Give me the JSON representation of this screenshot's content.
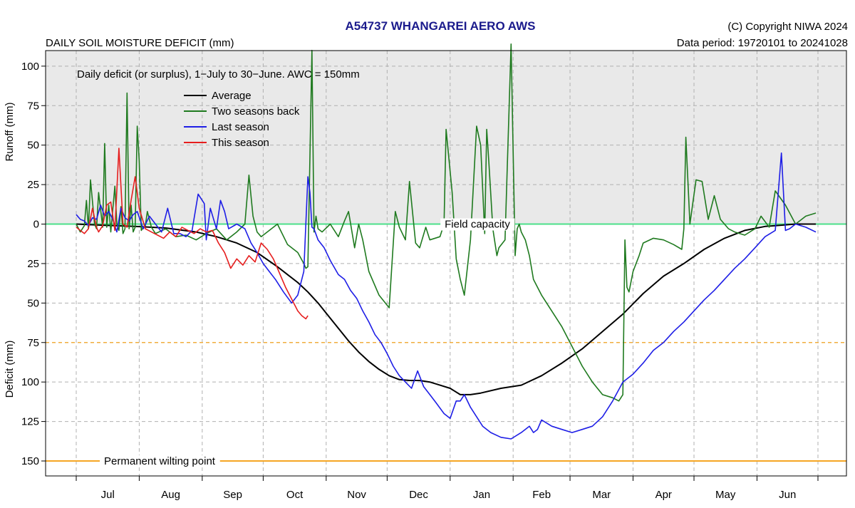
{
  "header": {
    "title": "A54737  WHANGAREI AERO AWS",
    "subtitle": "DAILY SOIL MOISTURE DEFICIT (mm)",
    "copyright": "(C) Copyright NIWA  2024",
    "data_period": "Data period:  19720101  to  20241028"
  },
  "chart_data": {
    "type": "line",
    "title": "A54737  WHANGAREI AERO AWS",
    "subtitle": "DAILY SOIL MOISTURE DEFICIT (mm)",
    "description": "Daily deficit (or surplus), 1−July to 30−June.  AWC = 150mm",
    "ylabel_top": "Runoff (mm)",
    "ylabel_bottom": "Deficit (mm)",
    "xlabel": "",
    "x_unit": "day of season (1 = 1 July)",
    "xlim": [
      1,
      365
    ],
    "ylim": [
      -110,
      160
    ],
    "y_axis_note": "positive values = deficit (plotted downward), negative values = runoff/surplus (plotted upward)",
    "categories": [
      "Jul",
      "Aug",
      "Sep",
      "Oct",
      "Nov",
      "Dec",
      "Jan",
      "Feb",
      "Mar",
      "Apr",
      "May",
      "Jun"
    ],
    "month_start_days": [
      1,
      32,
      63,
      93,
      124,
      154,
      185,
      216,
      244,
      275,
      305,
      336,
      366
    ],
    "y_ticks": [
      {
        "value": -100,
        "label": "100"
      },
      {
        "value": -75,
        "label": "75"
      },
      {
        "value": -50,
        "label": "50"
      },
      {
        "value": -25,
        "label": "25"
      },
      {
        "value": 0,
        "label": "0"
      },
      {
        "value": 25,
        "label": "25"
      },
      {
        "value": 50,
        "label": "50"
      },
      {
        "value": 75,
        "label": "75"
      },
      {
        "value": 100,
        "label": "100"
      },
      {
        "value": 125,
        "label": "125"
      },
      {
        "value": 150,
        "label": "150"
      }
    ],
    "grid": true,
    "legend_position": "top-left",
    "reference_lines": [
      {
        "name": "Field capacity",
        "value": 0,
        "color": "#4ce08a"
      },
      {
        "name": "",
        "value": 75,
        "color": "#f6a623",
        "style": "dashed"
      },
      {
        "name": "Permanent wilting point",
        "value": 150,
        "color": "#f6a623"
      }
    ],
    "series": [
      {
        "name": "Average",
        "color": "#000000",
        "x": [
          1,
          15,
          30,
          45,
          60,
          70,
          80,
          90,
          100,
          105,
          110,
          115,
          120,
          125,
          130,
          135,
          140,
          145,
          150,
          155,
          160,
          165,
          170,
          175,
          180,
          185,
          190,
          195,
          200,
          210,
          220,
          230,
          240,
          250,
          260,
          270,
          280,
          290,
          300,
          310,
          320,
          330,
          340,
          345,
          350,
          355,
          365
        ],
        "y": [
          0,
          0.8,
          1.5,
          2.5,
          5,
          8,
          12,
          18,
          27,
          32,
          37,
          43,
          50,
          58,
          66,
          74,
          81,
          87,
          92,
          96,
          98.5,
          99,
          99,
          100,
          102,
          104,
          108,
          108,
          107,
          104,
          102,
          96,
          88,
          79,
          68,
          57,
          44,
          33,
          25,
          16,
          9,
          4,
          1.5,
          1,
          0.5,
          0,
          0
        ]
      },
      {
        "name": "Two seasons back",
        "color": "#1f7a1f",
        "x": [
          1,
          3,
          5,
          6,
          7,
          8,
          10,
          11,
          12,
          14,
          15,
          16,
          17,
          18,
          20,
          21,
          22,
          23,
          24,
          25,
          26,
          27,
          28,
          29,
          30,
          31,
          32,
          33,
          34,
          35,
          36,
          38,
          40,
          45,
          50,
          55,
          60,
          65,
          70,
          75,
          80,
          84,
          86,
          88,
          90,
          92,
          95,
          100,
          105,
          110,
          113,
          114,
          115,
          117,
          118,
          119,
          120,
          122,
          126,
          130,
          133,
          135,
          138,
          140,
          142,
          145,
          150,
          155,
          158,
          160,
          163,
          165,
          168,
          170,
          173,
          175,
          180,
          182,
          183,
          186,
          188,
          190,
          192,
          195,
          198,
          200,
          202,
          203,
          204,
          206,
          208,
          209,
          212,
          215,
          217,
          218,
          219,
          220,
          222,
          224,
          226,
          230,
          240,
          250,
          255,
          260,
          265,
          268,
          270,
          271,
          272,
          273,
          275,
          278,
          280,
          285,
          290,
          295,
          299,
          300,
          301,
          303,
          306,
          309,
          312,
          315,
          318,
          320,
          322,
          325,
          330,
          335,
          338,
          342,
          345,
          350,
          355,
          360,
          365
        ],
        "y": [
          0,
          5,
          1,
          -15,
          3,
          -28,
          0,
          3,
          -20,
          2,
          -51,
          2,
          -12,
          5,
          -24,
          0,
          4,
          -11,
          6,
          3,
          -83,
          3,
          -12,
          5,
          2,
          -62,
          -40,
          4,
          2,
          1,
          -8,
          2,
          6,
          3,
          8,
          7,
          10,
          6,
          3,
          10,
          5,
          0,
          -31,
          -5,
          5,
          8,
          5,
          0,
          13,
          18,
          25,
          28,
          27,
          -110,
          5,
          -5,
          3,
          5,
          0,
          8,
          -2,
          -8,
          15,
          0,
          10,
          30,
          45,
          53,
          -8,
          2,
          10,
          -27,
          12,
          15,
          2,
          10,
          8,
          0,
          -60,
          -20,
          22,
          35,
          45,
          10,
          -62,
          -50,
          6,
          -60,
          -40,
          3,
          20,
          15,
          10,
          -114,
          20,
          3,
          0,
          5,
          10,
          20,
          35,
          45,
          65,
          90,
          100,
          108,
          110,
          112,
          108,
          10,
          40,
          43,
          30,
          20,
          12,
          9,
          10,
          13,
          16,
          3,
          -55,
          0,
          -28,
          -27,
          -3,
          -18,
          -3,
          0,
          3,
          5,
          7,
          3,
          -5,
          2,
          -21,
          -12,
          0,
          -5,
          -7
        ]
      },
      {
        "name": "Last season",
        "color": "#1e1ee6",
        "x": [
          1,
          3,
          5,
          7,
          9,
          11,
          13,
          15,
          17,
          19,
          21,
          23,
          25,
          27,
          29,
          31,
          34,
          37,
          40,
          43,
          46,
          49,
          52,
          55,
          58,
          61,
          64,
          65,
          67,
          70,
          72,
          74,
          76,
          80,
          84,
          87,
          90,
          93,
          96,
          99,
          103,
          107,
          110,
          113,
          115,
          116,
          117,
          118,
          120,
          123,
          126,
          130,
          133,
          136,
          139,
          142,
          145,
          148,
          151,
          154,
          157,
          160,
          163,
          166,
          169,
          172,
          175,
          178,
          182,
          185,
          188,
          190,
          192,
          195,
          198,
          201,
          205,
          210,
          215,
          220,
          224,
          226,
          228,
          230,
          235,
          240,
          245,
          250,
          255,
          260,
          265,
          270,
          275,
          280,
          285,
          290,
          295,
          300,
          305,
          310,
          315,
          320,
          325,
          330,
          335,
          340,
          345,
          348,
          350,
          352,
          355,
          360,
          365
        ],
        "y": [
          -6,
          -3,
          -2,
          1,
          -4,
          -3,
          -12,
          -5,
          -8,
          -3,
          5,
          -10,
          -4,
          -2,
          -6,
          -8,
          3,
          -5,
          0,
          5,
          -10,
          6,
          6,
          8,
          4,
          -19,
          -13,
          10,
          -10,
          3,
          -15,
          -8,
          3,
          0,
          3,
          12,
          18,
          25,
          30,
          35,
          43,
          50,
          45,
          30,
          -30,
          -20,
          2,
          3,
          10,
          15,
          23,
          32,
          35,
          42,
          47,
          55,
          62,
          70,
          75,
          82,
          90,
          96,
          100,
          104,
          93,
          103,
          108,
          113,
          120,
          123,
          112,
          112,
          108,
          116,
          122,
          128,
          132,
          135,
          136,
          132,
          128,
          132,
          130,
          124,
          128,
          130,
          132,
          130,
          128,
          122,
          112,
          100,
          95,
          88,
          80,
          75,
          68,
          62,
          55,
          48,
          42,
          35,
          28,
          22,
          15,
          8,
          4,
          -45,
          4,
          3,
          0,
          2,
          5
        ]
      },
      {
        "name": "This season",
        "color": "#e61e1e",
        "x": [
          1,
          3,
          5,
          7,
          9,
          11,
          12,
          14,
          16,
          18,
          20,
          22,
          24,
          26,
          28,
          30,
          32,
          35,
          38,
          41,
          44,
          47,
          50,
          53,
          56,
          59,
          62,
          65,
          68,
          71,
          74,
          77,
          80,
          83,
          86,
          89,
          92,
          95,
          98,
          100,
          102,
          104,
          106,
          108,
          110,
          112,
          114,
          115
        ],
        "y": [
          2,
          4,
          6,
          3,
          -10,
          2,
          5,
          1,
          -12,
          -14,
          4,
          -48,
          0,
          2,
          -15,
          -30,
          -10,
          3,
          5,
          7,
          9,
          5,
          8,
          2,
          4,
          6,
          3,
          5,
          4,
          12,
          18,
          28,
          22,
          26,
          20,
          24,
          12,
          16,
          22,
          28,
          34,
          40,
          45,
          50,
          55,
          58,
          60,
          58
        ]
      }
    ]
  }
}
